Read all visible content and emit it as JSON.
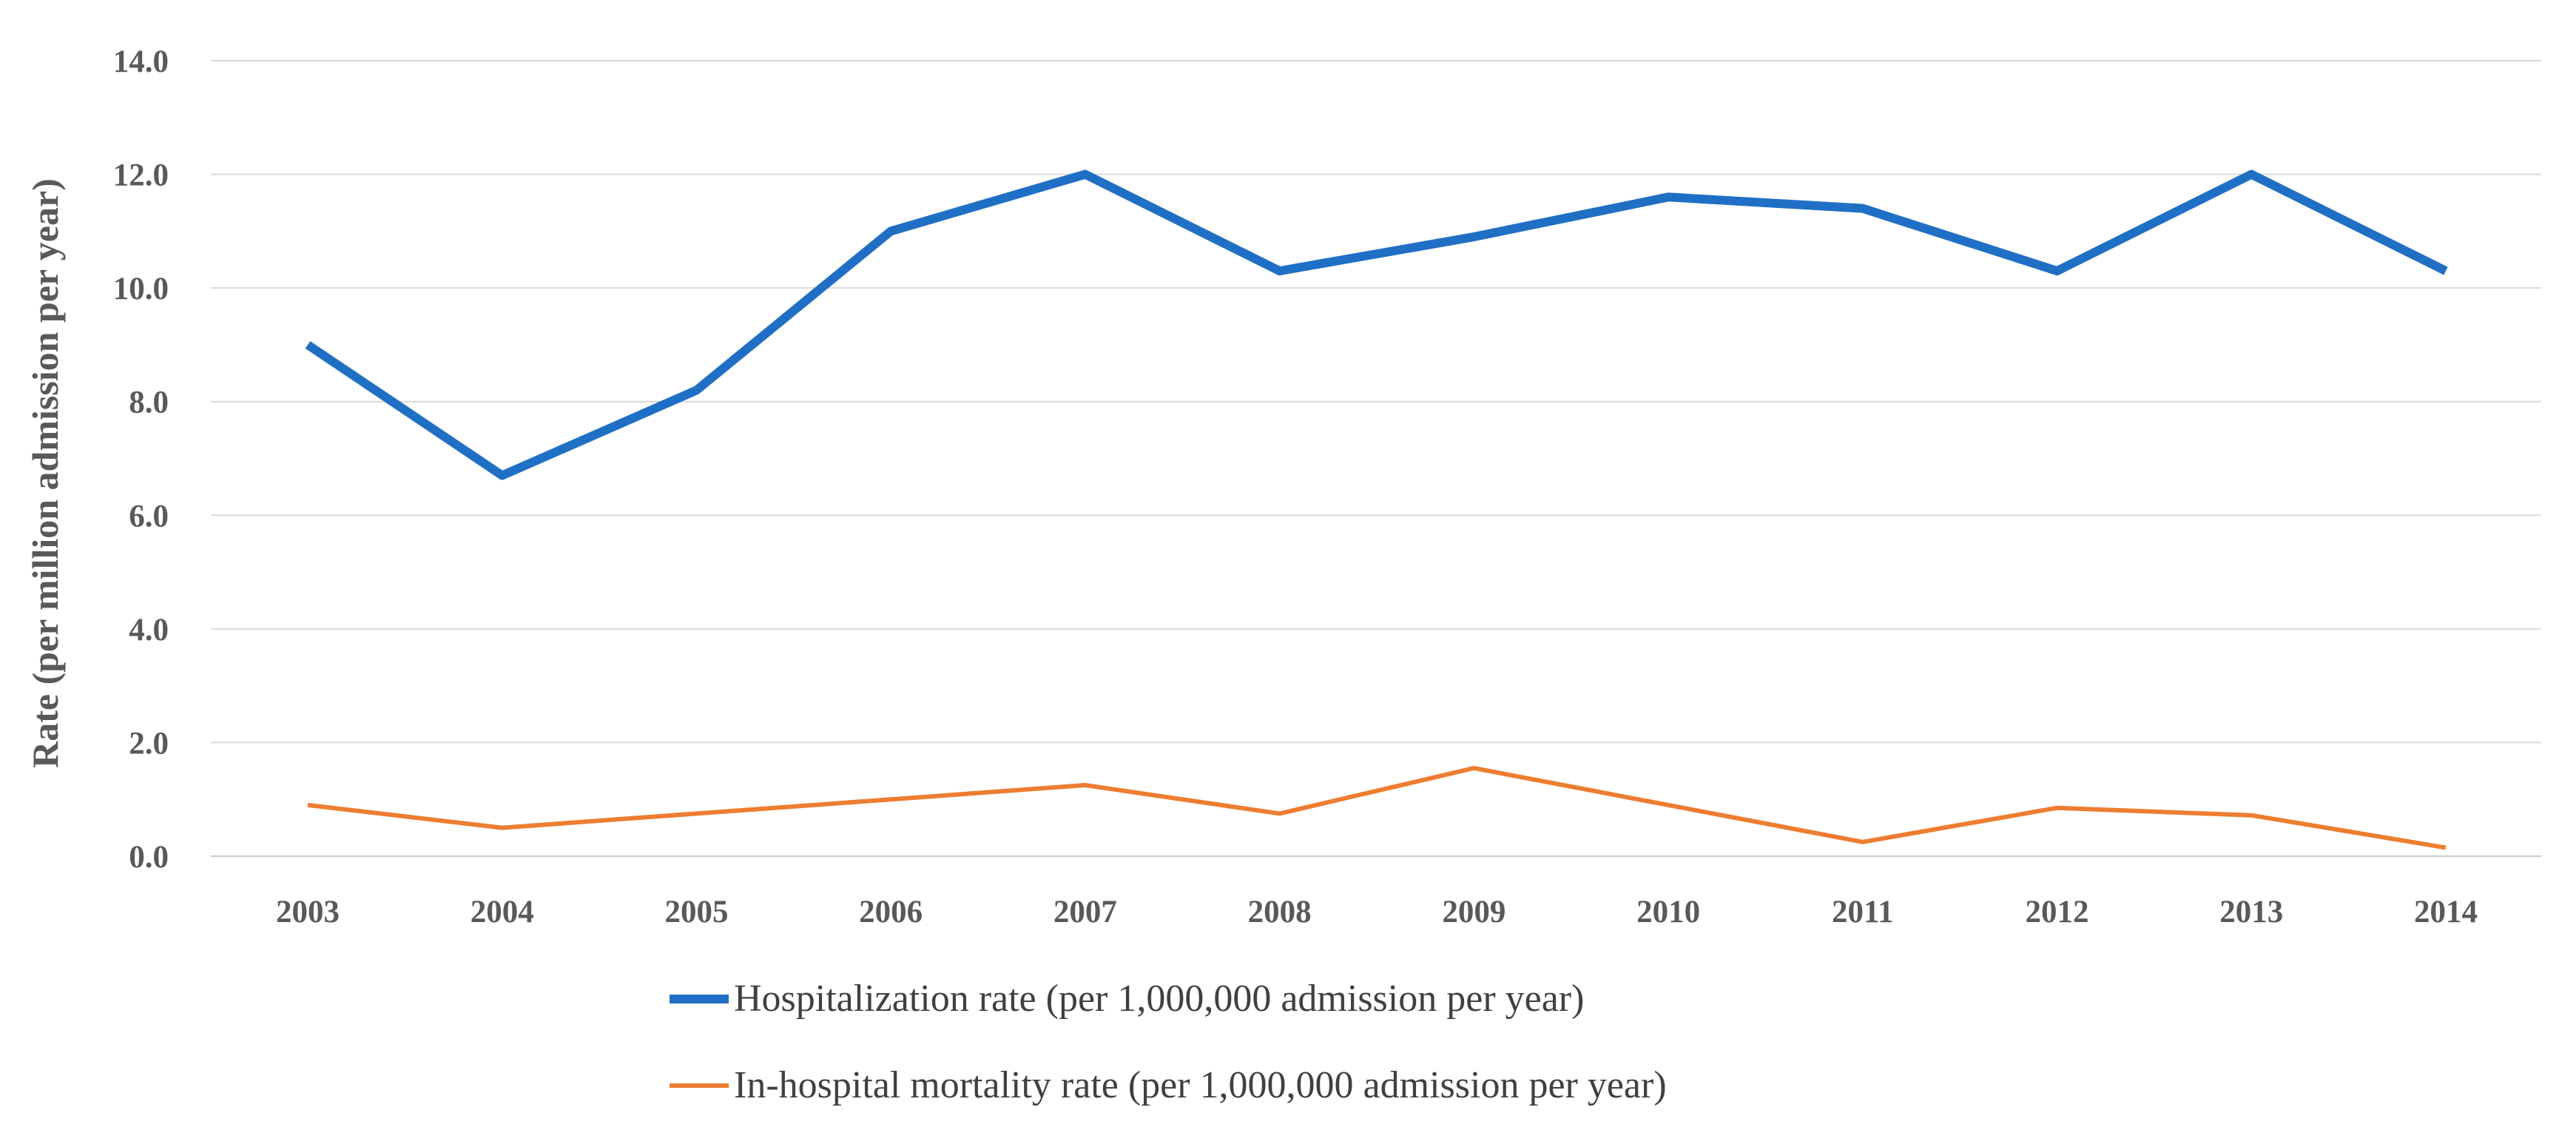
{
  "chart_data": {
    "type": "line",
    "title": "",
    "xlabel": "",
    "ylabel": "Rate (per million admission per year)",
    "categories": [
      "2003",
      "2004",
      "2005",
      "2006",
      "2007",
      "2008",
      "2009",
      "2010",
      "2011",
      "2012",
      "2013",
      "2014"
    ],
    "ylim": [
      0,
      14
    ],
    "yticks": [
      "0.0",
      "2.0",
      "4.0",
      "6.0",
      "8.0",
      "10.0",
      "12.0",
      "14.0"
    ],
    "grid": true,
    "legend_position": "bottom",
    "series": [
      {
        "name": "Hospitalization rate (per 1,000,000 admission per year)",
        "color": "#1f6fc5",
        "values": [
          9.0,
          6.7,
          8.2,
          11.0,
          12.0,
          10.3,
          10.9,
          11.6,
          11.4,
          10.3,
          12.0,
          10.3
        ]
      },
      {
        "name": "In-hospital mortality rate (per 1,000,000 admission per year)",
        "color": "#ed7d31",
        "values": [
          0.9,
          0.5,
          0.75,
          1.0,
          1.25,
          0.75,
          1.55,
          0.9,
          0.25,
          0.85,
          0.72,
          0.15
        ]
      }
    ]
  }
}
